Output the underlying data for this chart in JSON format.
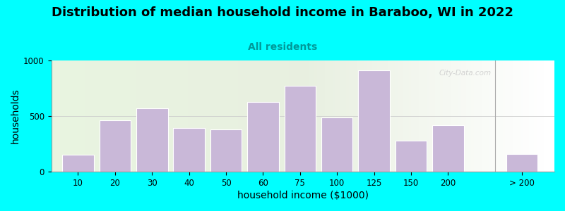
{
  "title": "Distribution of median household income in Baraboo, WI in 2022",
  "subtitle": "All residents",
  "xlabel": "household income ($1000)",
  "ylabel": "households",
  "bar_labels": [
    "10",
    "20",
    "30",
    "40",
    "50",
    "60",
    "75",
    "100",
    "125",
    "150",
    "200",
    "> 200"
  ],
  "bar_values": [
    150,
    460,
    570,
    390,
    380,
    630,
    770,
    490,
    910,
    280,
    420,
    160
  ],
  "bar_color": "#c9b8d8",
  "bar_edgecolor": "#ffffff",
  "ylim": [
    0,
    1000
  ],
  "yticks": [
    0,
    500,
    1000
  ],
  "background_color": "#00ffff",
  "title_fontsize": 13,
  "subtitle_fontsize": 10,
  "axis_label_fontsize": 10,
  "watermark": "City-Data.com",
  "bar_lefts": [
    0,
    1,
    2,
    3,
    4,
    5,
    6,
    7,
    8,
    9,
    10,
    12
  ],
  "bar_width": 0.85
}
